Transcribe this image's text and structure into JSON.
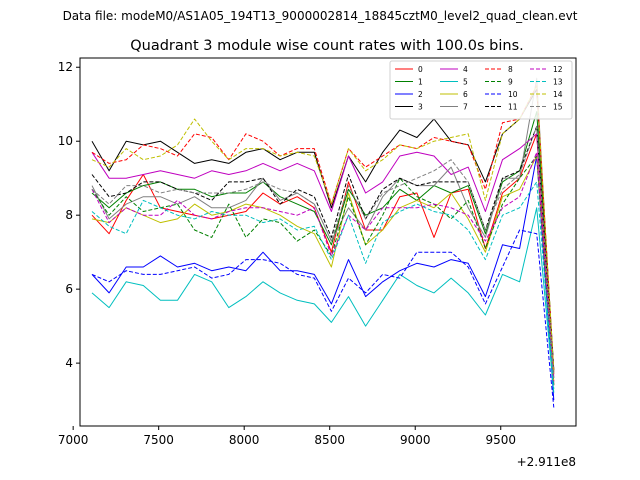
{
  "header": {
    "suptitle": "Data file: modeM0/AS1A05_194T13_9000002814_18845cztM0_level2_quad_clean.evt",
    "title": "Quadrant 3 module wise count rates with 100.0s bins."
  },
  "chart_data": {
    "type": "line",
    "x_offset_label": "+2.911e8",
    "xlim": [
      7040,
      9940
    ],
    "ylim": [
      2.3,
      12.25
    ],
    "x_ticks": [
      7000,
      7500,
      8000,
      8500,
      9000,
      9500
    ],
    "x_tick_labels": [
      "7000",
      "7500",
      "8000",
      "8500",
      "9000",
      "9500"
    ],
    "y_ticks": [
      4,
      6,
      8,
      10,
      12
    ],
    "y_tick_labels": [
      "4",
      "6",
      "8",
      "10",
      "12"
    ],
    "grid": false,
    "legend": {
      "placement": "top-right",
      "columns": 4
    },
    "x": [
      7110,
      7210,
      7310,
      7410,
      7510,
      7610,
      7710,
      7810,
      7910,
      8010,
      8110,
      8210,
      8310,
      8410,
      8510,
      8610,
      8710,
      8810,
      8910,
      9010,
      9110,
      9210,
      9310,
      9410,
      9510,
      9610,
      9710,
      9810
    ],
    "series": [
      {
        "name": "0",
        "color": "#ff0000",
        "dash": "solid",
        "values": [
          8.0,
          7.5,
          8.4,
          9.1,
          8.2,
          8.1,
          8.0,
          7.9,
          8.0,
          8.1,
          8.6,
          8.3,
          8.5,
          8.2,
          7.0,
          8.9,
          7.6,
          7.6,
          8.5,
          8.6,
          7.4,
          8.6,
          8.7,
          7.1,
          8.6,
          9.0,
          10.2,
          3.4
        ]
      },
      {
        "name": "1",
        "color": "#008000",
        "dash": "solid",
        "values": [
          8.6,
          8.2,
          8.6,
          8.8,
          8.9,
          8.7,
          8.7,
          8.5,
          8.6,
          8.6,
          8.9,
          8.5,
          8.3,
          8.1,
          7.2,
          8.7,
          8.0,
          8.2,
          8.7,
          8.4,
          8.8,
          8.6,
          8.8,
          7.5,
          8.9,
          9.2,
          10.8,
          3.8
        ]
      },
      {
        "name": "2",
        "color": "#0000ff",
        "dash": "solid",
        "values": [
          6.4,
          5.9,
          6.6,
          6.6,
          6.9,
          6.6,
          6.7,
          6.5,
          6.6,
          6.5,
          7.0,
          6.5,
          6.5,
          6.4,
          5.6,
          6.8,
          5.8,
          6.2,
          6.5,
          6.7,
          6.6,
          6.8,
          6.7,
          5.8,
          7.2,
          7.1,
          9.6,
          3.0
        ]
      },
      {
        "name": "3",
        "color": "#000000",
        "dash": "solid",
        "values": [
          10.0,
          9.2,
          10.0,
          9.9,
          10.0,
          9.7,
          9.4,
          9.5,
          9.4,
          9.7,
          9.8,
          9.5,
          9.7,
          9.7,
          8.2,
          9.6,
          8.9,
          9.7,
          10.3,
          10.1,
          10.6,
          10.0,
          9.9,
          8.9,
          10.2,
          10.6,
          11.4,
          3.8
        ]
      },
      {
        "name": "4",
        "color": "#bf00bf",
        "dash": "solid",
        "values": [
          9.7,
          9.0,
          9.0,
          9.1,
          9.2,
          9.1,
          9.0,
          9.2,
          9.1,
          9.2,
          9.4,
          9.2,
          9.4,
          9.2,
          8.1,
          9.6,
          8.6,
          8.9,
          9.6,
          9.7,
          9.6,
          9.1,
          9.3,
          8.1,
          9.5,
          9.8,
          10.2,
          3.8
        ]
      },
      {
        "name": "5",
        "color": "#00bfbf",
        "dash": "solid",
        "values": [
          5.9,
          5.5,
          6.2,
          6.1,
          5.7,
          5.7,
          6.4,
          6.2,
          5.5,
          5.8,
          6.2,
          5.9,
          5.7,
          5.6,
          5.1,
          5.8,
          5.0,
          5.7,
          6.4,
          6.1,
          5.9,
          6.3,
          5.9,
          5.3,
          6.4,
          6.2,
          8.2,
          3.2
        ]
      },
      {
        "name": "6",
        "color": "#bfbf00",
        "dash": "solid",
        "values": [
          7.9,
          7.8,
          8.2,
          8.0,
          7.8,
          7.9,
          8.3,
          8.0,
          8.1,
          8.3,
          8.2,
          8.0,
          7.7,
          7.5,
          6.6,
          8.6,
          7.2,
          7.6,
          8.2,
          8.4,
          8.2,
          8.6,
          7.9,
          7.0,
          8.5,
          8.7,
          9.6,
          3.5
        ]
      },
      {
        "name": "7",
        "color": "#808080",
        "dash": "solid",
        "values": [
          8.8,
          7.9,
          8.3,
          8.5,
          8.5,
          8.3,
          8.5,
          8.2,
          8.2,
          8.4,
          9.0,
          8.4,
          8.6,
          8.3,
          7.3,
          8.2,
          7.6,
          8.5,
          9.0,
          8.8,
          8.8,
          9.3,
          8.2,
          7.4,
          9.0,
          9.0,
          11.7,
          3.6
        ]
      },
      {
        "name": "8",
        "color": "#ff0000",
        "dash": "dashed",
        "values": [
          9.7,
          9.4,
          9.5,
          9.9,
          9.8,
          9.6,
          10.2,
          10.1,
          9.5,
          10.2,
          10.0,
          9.6,
          9.8,
          9.8,
          8.3,
          9.8,
          9.3,
          9.6,
          9.9,
          9.8,
          10.1,
          10.0,
          9.9,
          8.7,
          10.5,
          10.6,
          11.5,
          3.7
        ]
      },
      {
        "name": "9",
        "color": "#008000",
        "dash": "dashed",
        "values": [
          8.7,
          8.0,
          8.5,
          8.1,
          8.2,
          8.3,
          7.6,
          7.4,
          8.3,
          7.4,
          7.9,
          7.8,
          7.3,
          7.6,
          6.9,
          8.5,
          7.2,
          8.0,
          9.0,
          8.5,
          8.3,
          7.9,
          8.4,
          7.1,
          8.3,
          9.0,
          9.6,
          3.4
        ]
      },
      {
        "name": "10",
        "color": "#0000ff",
        "dash": "dashed",
        "values": [
          6.4,
          6.2,
          6.5,
          6.4,
          6.4,
          6.5,
          6.6,
          6.3,
          6.4,
          6.8,
          6.8,
          6.7,
          6.4,
          6.3,
          5.4,
          6.3,
          5.9,
          6.4,
          6.3,
          7.0,
          7.0,
          7.0,
          6.6,
          5.6,
          6.6,
          7.6,
          7.5,
          2.8
        ]
      },
      {
        "name": "11",
        "color": "#000000",
        "dash": "dashed",
        "values": [
          9.1,
          8.5,
          8.6,
          8.9,
          8.9,
          8.7,
          8.6,
          8.4,
          8.9,
          8.9,
          9.0,
          8.3,
          8.7,
          8.5,
          7.4,
          9.1,
          7.9,
          8.7,
          9.0,
          8.8,
          8.9,
          8.9,
          8.9,
          7.6,
          9.0,
          9.2,
          10.4,
          3.7
        ]
      },
      {
        "name": "12",
        "color": "#bf00bf",
        "dash": "dashed",
        "values": [
          8.7,
          7.8,
          8.2,
          8.0,
          8.0,
          8.4,
          8.0,
          7.9,
          8.1,
          8.2,
          8.2,
          8.1,
          8.0,
          8.2,
          6.9,
          8.0,
          7.6,
          8.2,
          8.2,
          8.2,
          8.3,
          8.2,
          8.0,
          7.3,
          8.2,
          8.5,
          9.7,
          3.5
        ]
      },
      {
        "name": "13",
        "color": "#00bfbf",
        "dash": "dashed",
        "values": [
          8.1,
          7.7,
          7.5,
          8.4,
          8.2,
          8.0,
          7.9,
          8.1,
          8.0,
          8.0,
          7.8,
          7.9,
          7.6,
          7.7,
          6.8,
          8.0,
          6.7,
          7.8,
          8.1,
          8.3,
          8.1,
          8.0,
          7.6,
          6.8,
          8.0,
          8.2,
          8.9,
          3.3
        ]
      },
      {
        "name": "14",
        "color": "#bfbf00",
        "dash": "dashed",
        "values": [
          9.5,
          9.3,
          9.8,
          9.5,
          9.6,
          9.9,
          10.6,
          10.0,
          9.5,
          9.8,
          9.8,
          9.6,
          9.7,
          9.6,
          8.3,
          9.8,
          9.2,
          9.5,
          9.9,
          9.8,
          10.0,
          10.1,
          10.2,
          8.4,
          10.2,
          10.6,
          11.5,
          3.8
        ]
      },
      {
        "name": "15",
        "color": "#808080",
        "dash": "dashed",
        "values": [
          8.7,
          8.3,
          8.8,
          8.8,
          8.6,
          8.7,
          8.6,
          8.6,
          8.6,
          8.7,
          8.9,
          8.7,
          8.6,
          8.3,
          7.3,
          8.8,
          7.9,
          8.6,
          8.8,
          9.0,
          9.2,
          9.5,
          8.9,
          7.6,
          8.7,
          9.1,
          10.4,
          3.6
        ]
      }
    ]
  }
}
